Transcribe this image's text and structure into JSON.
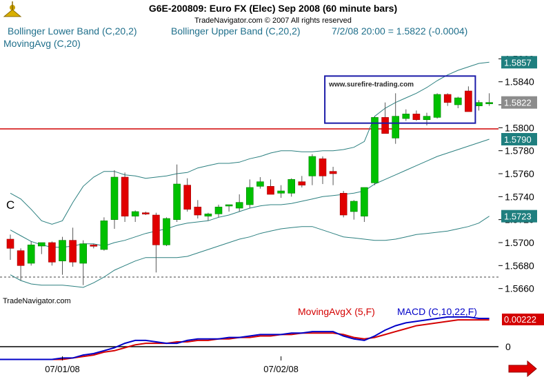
{
  "title": "G6E-200809:  Euro FX (Elec) Sep 2008  (60 minute bars)",
  "copyright": "TradeNavigator.com © 2007 All rights reserved",
  "legend": {
    "lower_band": "Bollinger Lower Band (C,20,2)",
    "upper_band": "Bollinger Upper Band (C,20,2)",
    "quote": "7/2/08 20:00 = 1.5822 (-0.0004)",
    "moving_avg": "MovingAvg (C,20)"
  },
  "left_label": "C",
  "watermark": "www.surefire-trading.com",
  "footer_brand": "TradeNavigator.com",
  "price_badges": [
    {
      "text": "1.5857",
      "value": 1.5857,
      "color": "#1f7f7f"
    },
    {
      "text": "1.5822",
      "value": 1.5822,
      "color": "#8c8c8c"
    },
    {
      "text": "1.5790",
      "value": 1.579,
      "color": "#1f7f7f"
    },
    {
      "text": "1.5723",
      "value": 1.5723,
      "color": "#1f7f7f"
    }
  ],
  "indicator": {
    "ma_label": "MovingAvgX (5,F)",
    "macd_label": "MACD (C,10,22,F)",
    "macd_value": "0.00222",
    "zero_label": "0",
    "macd_color": "#0000c8",
    "signal_color": "#d40000"
  },
  "colors": {
    "up": "#00c000",
    "down": "#e00000",
    "band": "#2a7f7f",
    "level": "#d00000"
  },
  "chart_data": {
    "type": "candlestick",
    "y_ticks": [
      1.566,
      1.568,
      1.57,
      1.572,
      1.574,
      1.576,
      1.578,
      1.58,
      1.582,
      1.584,
      1.586
    ],
    "y_tick_labels": [
      "1.5660",
      "1.5680",
      "1.5700",
      "1.5720",
      "1.5740",
      "1.5760",
      "1.5780",
      "1.5800",
      "1.5820",
      "1.5840",
      "1.5860"
    ],
    "ylim": [
      1.5652,
      1.5868
    ],
    "x_date_labels": [
      {
        "label": "07/01/08",
        "bar": 5
      },
      {
        "label": "07/02/08",
        "bar": 26
      }
    ],
    "horizontal_levels": [
      {
        "value": 1.5799,
        "color": "#d00000",
        "style": "solid"
      },
      {
        "value": 1.567,
        "color": "#404040",
        "style": "dashed"
      }
    ],
    "watermark_box": {
      "from_bar": 31,
      "to_bar": 44,
      "y_top": 1.5845,
      "y_bottom": 1.5804
    },
    "candles": [
      {
        "o": 1.5703,
        "h": 1.5707,
        "l": 1.5685,
        "c": 1.5695
      },
      {
        "o": 1.5693,
        "h": 1.5695,
        "l": 1.5667,
        "c": 1.568
      },
      {
        "o": 1.5682,
        "h": 1.5701,
        "l": 1.568,
        "c": 1.5698
      },
      {
        "o": 1.5697,
        "h": 1.57,
        "l": 1.569,
        "c": 1.57
      },
      {
        "o": 1.57,
        "h": 1.5701,
        "l": 1.568,
        "c": 1.5683
      },
      {
        "o": 1.5684,
        "h": 1.5705,
        "l": 1.5672,
        "c": 1.5702
      },
      {
        "o": 1.5702,
        "h": 1.5713,
        "l": 1.5679,
        "c": 1.5683
      },
      {
        "o": 1.5682,
        "h": 1.5702,
        "l": 1.5663,
        "c": 1.5699
      },
      {
        "o": 1.5698,
        "h": 1.5699,
        "l": 1.5695,
        "c": 1.5697
      },
      {
        "o": 1.5694,
        "h": 1.5722,
        "l": 1.5693,
        "c": 1.5719
      },
      {
        "o": 1.572,
        "h": 1.5763,
        "l": 1.5712,
        "c": 1.5757
      },
      {
        "o": 1.5757,
        "h": 1.5761,
        "l": 1.5718,
        "c": 1.5723
      },
      {
        "o": 1.5723,
        "h": 1.5728,
        "l": 1.5718,
        "c": 1.5727
      },
      {
        "o": 1.5726,
        "h": 1.5727,
        "l": 1.5724,
        "c": 1.5725
      },
      {
        "o": 1.5724,
        "h": 1.5726,
        "l": 1.5674,
        "c": 1.5698
      },
      {
        "o": 1.5698,
        "h": 1.5722,
        "l": 1.5697,
        "c": 1.5721
      },
      {
        "o": 1.572,
        "h": 1.5768,
        "l": 1.5718,
        "c": 1.5751
      },
      {
        "o": 1.575,
        "h": 1.5756,
        "l": 1.5727,
        "c": 1.5729
      },
      {
        "o": 1.5731,
        "h": 1.5737,
        "l": 1.5721,
        "c": 1.5724
      },
      {
        "o": 1.5723,
        "h": 1.5726,
        "l": 1.5719,
        "c": 1.5725
      },
      {
        "o": 1.5725,
        "h": 1.5733,
        "l": 1.5722,
        "c": 1.5731
      },
      {
        "o": 1.5732,
        "h": 1.5733,
        "l": 1.5727,
        "c": 1.5733
      },
      {
        "o": 1.573,
        "h": 1.5742,
        "l": 1.5727,
        "c": 1.5735
      },
      {
        "o": 1.5733,
        "h": 1.5755,
        "l": 1.573,
        "c": 1.5748
      },
      {
        "o": 1.5749,
        "h": 1.5757,
        "l": 1.5747,
        "c": 1.5753
      },
      {
        "o": 1.5749,
        "h": 1.5755,
        "l": 1.5744,
        "c": 1.5742
      },
      {
        "o": 1.5743,
        "h": 1.575,
        "l": 1.5739,
        "c": 1.5745
      },
      {
        "o": 1.5743,
        "h": 1.5756,
        "l": 1.574,
        "c": 1.5755
      },
      {
        "o": 1.5753,
        "h": 1.5758,
        "l": 1.5748,
        "c": 1.575
      },
      {
        "o": 1.5758,
        "h": 1.5777,
        "l": 1.575,
        "c": 1.5775
      },
      {
        "o": 1.5773,
        "h": 1.5775,
        "l": 1.5751,
        "c": 1.5758
      },
      {
        "o": 1.5762,
        "h": 1.5766,
        "l": 1.575,
        "c": 1.576
      },
      {
        "o": 1.5743,
        "h": 1.5745,
        "l": 1.5722,
        "c": 1.5724
      },
      {
        "o": 1.5727,
        "h": 1.5737,
        "l": 1.572,
        "c": 1.5736
      },
      {
        "o": 1.5723,
        "h": 1.5746,
        "l": 1.5718,
        "c": 1.5748
      },
      {
        "o": 1.5752,
        "h": 1.581,
        "l": 1.575,
        "c": 1.5809
      },
      {
        "o": 1.5809,
        "h": 1.5822,
        "l": 1.5795,
        "c": 1.5795
      },
      {
        "o": 1.5791,
        "h": 1.583,
        "l": 1.5786,
        "c": 1.581
      },
      {
        "o": 1.5808,
        "h": 1.5816,
        "l": 1.5806,
        "c": 1.5812
      },
      {
        "o": 1.5812,
        "h": 1.5815,
        "l": 1.5806,
        "c": 1.5807
      },
      {
        "o": 1.5807,
        "h": 1.5813,
        "l": 1.5802,
        "c": 1.581
      },
      {
        "o": 1.5809,
        "h": 1.583,
        "l": 1.5808,
        "c": 1.5829
      },
      {
        "o": 1.5829,
        "h": 1.583,
        "l": 1.5819,
        "c": 1.5822
      },
      {
        "o": 1.582,
        "h": 1.5827,
        "l": 1.5817,
        "c": 1.5826
      },
      {
        "o": 1.5832,
        "h": 1.5836,
        "l": 1.5814,
        "c": 1.5814
      },
      {
        "o": 1.5819,
        "h": 1.5824,
        "l": 1.5815,
        "c": 1.5822
      },
      {
        "o": 1.5822,
        "h": 1.583,
        "l": 1.5819,
        "c": 1.5822
      }
    ],
    "upper_band": [
      1.5743,
      1.5738,
      1.5729,
      1.5719,
      1.5716,
      1.5719,
      1.5735,
      1.5749,
      1.5757,
      1.5762,
      1.5762,
      1.5759,
      1.5758,
      1.5756,
      1.5757,
      1.5758,
      1.576,
      1.5761,
      1.5765,
      1.5767,
      1.5769,
      1.5769,
      1.577,
      1.5773,
      1.5775,
      1.5778,
      1.578,
      1.578,
      1.5779,
      1.5779,
      1.578,
      1.578,
      1.5781,
      1.5783,
      1.5788,
      1.581,
      1.5817,
      1.5822,
      1.5826,
      1.583,
      1.5835,
      1.5841,
      1.5846,
      1.585,
      1.5853,
      1.5856,
      1.5857
    ],
    "moving_avg": [
      1.5711,
      1.5706,
      1.5701,
      1.5698,
      1.5696,
      1.5696,
      1.5697,
      1.5699,
      1.5699,
      1.5697,
      1.57,
      1.5702,
      1.5705,
      1.5708,
      1.571,
      1.5712,
      1.5715,
      1.5717,
      1.5718,
      1.5719,
      1.5722,
      1.5724,
      1.5727,
      1.573,
      1.5732,
      1.5733,
      1.5733,
      1.5734,
      1.5736,
      1.5738,
      1.574,
      1.5741,
      1.5742,
      1.5743,
      1.5745,
      1.5751,
      1.5755,
      1.5759,
      1.5763,
      1.5767,
      1.5771,
      1.5775,
      1.5778,
      1.5781,
      1.5784,
      1.5787,
      1.579
    ],
    "lower_band": [
      1.5672,
      1.5667,
      1.5664,
      1.5663,
      1.5663,
      1.5663,
      1.5662,
      1.5661,
      1.5665,
      1.567,
      1.5676,
      1.568,
      1.5684,
      1.5687,
      1.5687,
      1.5687,
      1.5687,
      1.5688,
      1.5691,
      1.5694,
      1.5697,
      1.57,
      1.5703,
      1.5705,
      1.5708,
      1.571,
      1.5712,
      1.5713,
      1.5714,
      1.5714,
      1.5711,
      1.5708,
      1.5705,
      1.5704,
      1.5703,
      1.5702,
      1.5702,
      1.5703,
      1.5705,
      1.5707,
      1.5708,
      1.5709,
      1.571,
      1.5712,
      1.5714,
      1.5717,
      1.5723
    ],
    "macd": [
      -0.0006,
      -0.0006,
      -0.0006,
      -0.0006,
      -0.0006,
      -0.0005,
      -0.0005,
      -0.0003,
      -0.0002,
      0.0,
      0.0002,
      0.0005,
      0.0007,
      0.0007,
      0.0006,
      0.0005,
      0.0005,
      0.0007,
      0.0008,
      0.0008,
      0.0008,
      0.0009,
      0.0009,
      0.001,
      0.0011,
      0.0011,
      0.0011,
      0.0012,
      0.0012,
      0.0013,
      0.0013,
      0.0013,
      0.001,
      0.0008,
      0.0007,
      0.001,
      0.0014,
      0.0017,
      0.0019,
      0.002,
      0.0021,
      0.0022,
      0.0023,
      0.0023,
      0.0023,
      0.0022,
      0.0022
    ],
    "signal": [
      -0.0006,
      -0.0006,
      -0.0006,
      -0.0006,
      -0.0006,
      -0.0006,
      -0.0005,
      -0.0004,
      -0.0003,
      -0.0001,
      0.0,
      0.0002,
      0.0004,
      0.0005,
      0.0005,
      0.0005,
      0.0006,
      0.0006,
      0.0007,
      0.0007,
      0.0008,
      0.0008,
      0.0009,
      0.0009,
      0.001,
      0.001,
      0.0011,
      0.0011,
      0.0012,
      0.0012,
      0.0012,
      0.0012,
      0.0011,
      0.0009,
      0.0008,
      0.0009,
      0.0011,
      0.0013,
      0.0015,
      0.0017,
      0.0018,
      0.0019,
      0.002,
      0.0021,
      0.0021,
      0.0021,
      0.0021
    ],
    "macd_ylim": [
      -0.001,
      0.003
    ]
  }
}
